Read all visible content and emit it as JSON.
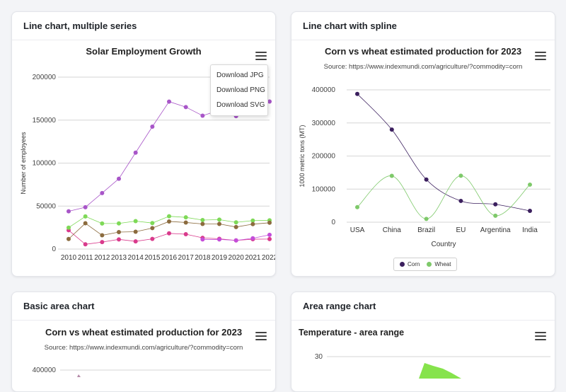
{
  "cards": {
    "c1": {
      "title": "Line chart, multiple series"
    },
    "c2": {
      "title": "Line chart with spline"
    },
    "c3": {
      "title": "Basic area chart"
    },
    "c4": {
      "title": "Area range chart"
    }
  },
  "menu": {
    "items": [
      "Download JPG",
      "Download PNG",
      "Download SVG"
    ]
  },
  "icons": {
    "menu": "hamburger-menu-icon"
  },
  "chart_data": [
    {
      "type": "line",
      "title": "Solar Employment Growth",
      "xlabel": "",
      "ylabel": "Number of employees",
      "x": [
        "2010",
        "2011",
        "2012",
        "2013",
        "2014",
        "2015",
        "2016",
        "2017",
        "2018",
        "2019",
        "2020",
        "2021",
        "2022"
      ],
      "ylim": [
        0,
        200000
      ],
      "yticks": [
        "0",
        "50000",
        "100000",
        "150000",
        "200000"
      ],
      "grid": true,
      "series": [
        {
          "color": "#a855c8",
          "values": [
            43934,
            48656,
            65165,
            81827,
            112143,
            142383,
            171533,
            165174,
            155157,
            161454,
            154610,
            168960,
            171558
          ]
        },
        {
          "color": "#d93a8c",
          "values": [
            21908,
            5548,
            8105,
            11248,
            8989,
            11816,
            18274,
            17300,
            13053,
            11906,
            10073,
            11471,
            11648
          ]
        },
        {
          "color": "#7ed957",
          "values": [
            24916,
            37941,
            29742,
            29851,
            32490,
            30282,
            38121,
            36885,
            33726,
            34243,
            31050,
            33099,
            33473
          ]
        },
        {
          "color": "#8b6b3e",
          "values": [
            11744,
            30000,
            16005,
            19771,
            20185,
            24377,
            32147,
            30912,
            29243,
            29213,
            25663,
            28978,
            30618
          ]
        },
        {
          "color": "#c44dd9",
          "values": [
            null,
            null,
            null,
            null,
            null,
            null,
            null,
            null,
            11164,
            11218,
            10077,
            12530,
            16585
          ]
        }
      ]
    },
    {
      "type": "line",
      "title": "Corn vs wheat estimated production for 2023",
      "subtitle": "Source: https://www.indexmundi.com/agriculture/?commodity=corn",
      "xlabel": "Country",
      "ylabel": "1000 metric tons (MT)",
      "categories": [
        "USA",
        "China",
        "Brazil",
        "EU",
        "Argentina",
        "India"
      ],
      "ylim": [
        0,
        400000
      ],
      "yticks": [
        "0",
        "100000",
        "200000",
        "300000",
        "400000"
      ],
      "grid": true,
      "legend": "bottom-center",
      "series": [
        {
          "name": "Corn",
          "color": "#3b1f5e",
          "values": [
            387749,
            280000,
            129000,
            64300,
            54000,
            34300
          ]
        },
        {
          "name": "Wheat",
          "color": "#7ec96a",
          "values": [
            45321,
            140000,
            10000,
            140500,
            19500,
            113500
          ]
        }
      ]
    },
    {
      "type": "area",
      "title": "Corn vs wheat estimated production for 2023",
      "subtitle": "Source: https://www.indexmundi.com/agriculture/?commodity=corn",
      "yticks": [
        "400000"
      ]
    },
    {
      "type": "area",
      "title": "Temperature - area range",
      "yticks": [
        "30"
      ]
    }
  ]
}
